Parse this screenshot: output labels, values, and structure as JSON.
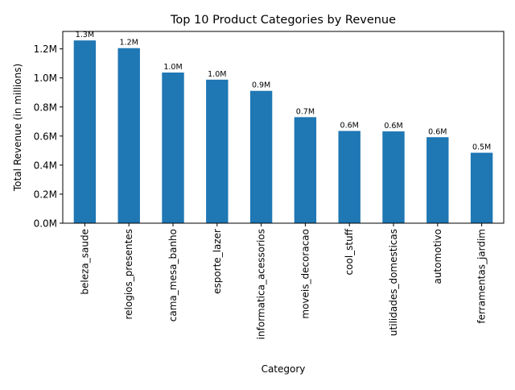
{
  "chart_data": {
    "type": "bar",
    "title": "Top 10 Product Categories by Revenue",
    "xlabel": "Category",
    "ylabel": "Total Revenue (in millions)",
    "categories": [
      "beleza_saude",
      "relogios_presentes",
      "cama_mesa_banho",
      "esporte_lazer",
      "informatica_acessorios",
      "moveis_decoracao",
      "cool_stuff",
      "utilidades_domesticas",
      "automotivo",
      "ferramentas_jardim"
    ],
    "values": [
      1.258,
      1.205,
      1.037,
      0.988,
      0.911,
      0.73,
      0.635,
      0.632,
      0.592,
      0.485
    ],
    "data_labels": [
      "1.3M",
      "1.2M",
      "1.0M",
      "1.0M",
      "0.9M",
      "0.7M",
      "0.6M",
      "0.6M",
      "0.6M",
      "0.5M"
    ],
    "ylim": [
      0,
      1.32
    ],
    "yticks": [
      0.0,
      0.2,
      0.4,
      0.6,
      0.8,
      1.0,
      1.2
    ],
    "ytick_labels": [
      "0.0M",
      "0.2M",
      "0.4M",
      "0.6M",
      "0.8M",
      "1.0M",
      "1.2M"
    ],
    "bar_color": "#1f77b4",
    "grid": false,
    "legend": "none"
  }
}
